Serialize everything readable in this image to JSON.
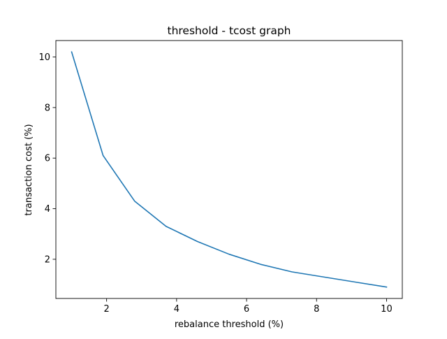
{
  "chart_data": {
    "type": "line",
    "title": "threshold - tcost graph",
    "xlabel": "rebalance threshold (%)",
    "ylabel": "transaction cost (%)",
    "xlim": [
      0.55,
      10.45
    ],
    "ylim": [
      0.45,
      10.65
    ],
    "xticks": [
      2,
      4,
      6,
      8,
      10
    ],
    "yticks": [
      2,
      4,
      6,
      8,
      10
    ],
    "grid": false,
    "legend": "none",
    "series": [
      {
        "color": "#1f77b4",
        "x": [
          1.0,
          1.9,
          2.8,
          3.7,
          4.6,
          5.5,
          6.4,
          7.3,
          8.2,
          9.1,
          10.0
        ],
        "y": [
          10.2,
          6.1,
          4.3,
          3.3,
          2.7,
          2.2,
          1.8,
          1.5,
          1.3,
          1.1,
          0.9
        ]
      }
    ]
  }
}
